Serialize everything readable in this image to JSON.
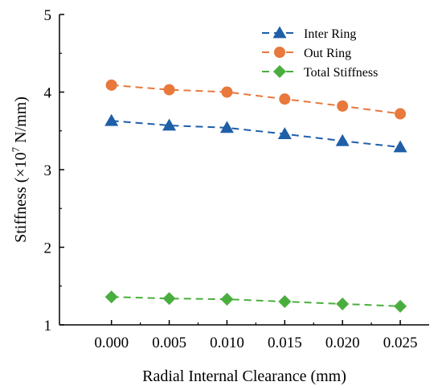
{
  "chart_data": {
    "type": "line",
    "title": "",
    "xlabel": "Radial Internal Clearance (mm)",
    "ylabel": {
      "prefix": "Stiffness (×10",
      "exponent": "7",
      "suffix": " N/mm)"
    },
    "x": [
      0.0,
      0.005,
      0.01,
      0.015,
      0.02,
      0.025
    ],
    "x_tick_labels": [
      "0.000",
      "0.005",
      "0.010",
      "0.015",
      "0.020",
      "0.025"
    ],
    "xlim": [
      -0.0045,
      0.0275
    ],
    "ylim": [
      1,
      5
    ],
    "y_ticks": [
      1,
      2,
      3,
      4,
      5
    ],
    "y_tick_labels": [
      "1",
      "2",
      "3",
      "4",
      "5"
    ],
    "grid": false,
    "legend_position": "top-right",
    "series": [
      {
        "name": "Inter Ring",
        "marker": "triangle",
        "color": "#1f5fa8",
        "values": [
          3.63,
          3.57,
          3.54,
          3.46,
          3.37,
          3.29
        ]
      },
      {
        "name": "Out Ring",
        "marker": "circle",
        "color": "#e8783c",
        "values": [
          4.09,
          4.03,
          4.0,
          3.91,
          3.82,
          3.72
        ]
      },
      {
        "name": "Total Stiffness",
        "marker": "diamond",
        "color": "#4aae3e",
        "values": [
          1.36,
          1.34,
          1.33,
          1.3,
          1.27,
          1.24
        ]
      }
    ]
  }
}
